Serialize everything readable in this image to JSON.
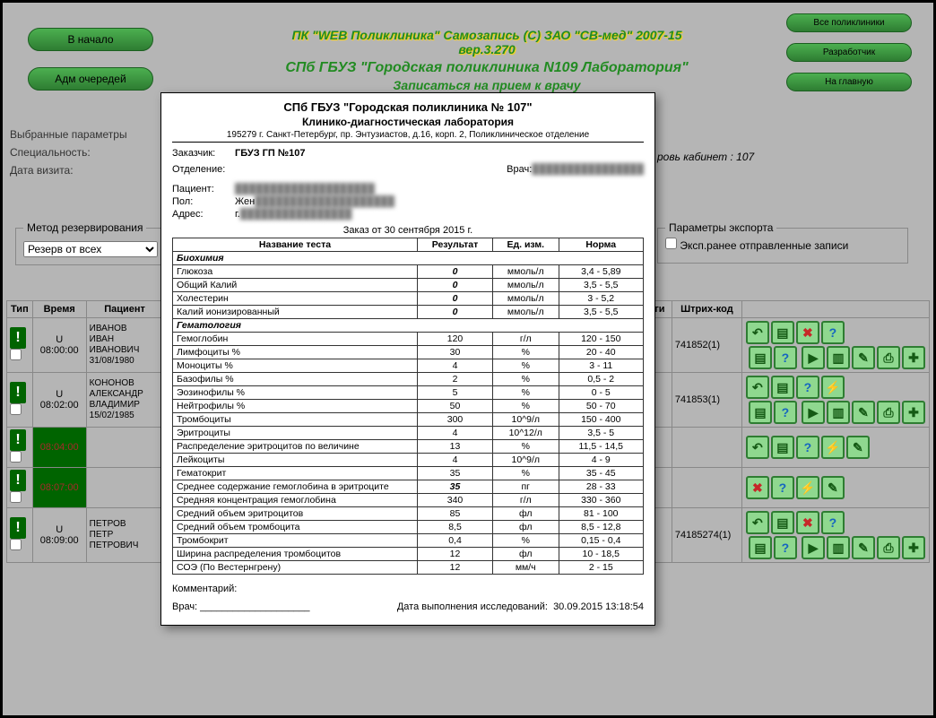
{
  "left_buttons": {
    "home": "В начало",
    "adm_queue": "Адм очередей"
  },
  "right_buttons": {
    "all_clinics": "Все поликлиники",
    "developer": "Разработчик",
    "to_main": "На главную"
  },
  "header": {
    "line1": "ПК \"WEB Поликлиника\" Самозапись (C) ЗАО \"СВ-мед\" 2007-15 вер.3.270",
    "line2": "СПб ГБУЗ \"Городская поликлиника N109 Лаборатория\"",
    "line3": "Записаться на прием к врачу"
  },
  "params": {
    "title": "Выбранные параметры",
    "speciality_lbl": "Специальность:",
    "visit_date_lbl": "Дата визита:"
  },
  "cabinet": "ровь кабинет : 107",
  "method_box": {
    "legend": "Метод резервирования",
    "selected": "Резерв от всех"
  },
  "export_box": {
    "legend": "Параметры экспорта",
    "checkbox_label": "Эксп.ранее отправленные записи"
  },
  "sched_headers": {
    "type": "Тип",
    "time": "Время",
    "patient": "Пациент",
    "services": "луги",
    "barcode": "Штрих-код"
  },
  "rows": [
    {
      "time_type": "U",
      "time": "08:00:00",
      "patient": "ИВАНОВ\nИВАН\nИВАНОВИЧ\n31/08/1980",
      "barcode": "741852(1)",
      "icons": [
        "back",
        "doc",
        "x",
        "q",
        "",
        "",
        "doc2",
        "q2",
        "",
        "play",
        "bars",
        "edit",
        "print",
        "plus"
      ],
      "dark": false
    },
    {
      "time_type": "U",
      "time": "08:02:00",
      "patient": "КОНОНОВ\nАЛЕКСАНДР\nВЛАДИМИР\n15/02/1985",
      "barcode": "741853(1)",
      "icons": [
        "back",
        "doc",
        "q",
        "bolt",
        "",
        "",
        "doc2",
        "q2",
        "",
        "play",
        "bars",
        "edit",
        "print",
        "plus"
      ],
      "dark": false
    },
    {
      "time_type": "",
      "time": "08:04:00",
      "patient": "",
      "barcode": "",
      "icons": [
        "back",
        "doc",
        "q",
        "bolt",
        "edit"
      ],
      "dark": true
    },
    {
      "time_type": "",
      "time": "08:07:00",
      "patient": "",
      "barcode": "",
      "icons": [
        "x",
        "q",
        "bolt",
        "edit"
      ],
      "dark": true
    },
    {
      "time_type": "U",
      "time": "08:09:00",
      "patient": "ПЕТРОВ\nПЕТР\nПЕТРОВИЧ",
      "barcode": "74185274(1)",
      "icons": [
        "back",
        "doc",
        "x",
        "q",
        "",
        "",
        "doc2",
        "q2",
        "",
        "play",
        "bars",
        "edit",
        "print",
        "plus"
      ],
      "dark": false
    }
  ],
  "lab": {
    "org": "СПб ГБУЗ \"Городская поликлиника № 107\"",
    "dept": "Клинико-диагностическая лаборатория",
    "addr": "195279 г. Санкт-Петербург, пр. Энтузиастов, д.16, корп. 2, Поликлиническое отделение",
    "customer_lbl": "Заказчик:",
    "customer": "ГБУЗ ГП №107",
    "division_lbl": "Отделение:",
    "doctor_lbl": "Врач:",
    "patient_lbl": "Пациент:",
    "sex_lbl": "Пол:",
    "sex": "Жен",
    "address_lbl": "Адрес:",
    "address_val": "г.",
    "order_date": "Заказ от 30 сентября 2015 г.",
    "th": {
      "name": "Название теста",
      "result": "Результат",
      "unit": "Ед. изм.",
      "norm": "Норма"
    },
    "sections": [
      {
        "title": "Биохимия",
        "rows": [
          {
            "name": "Глюкоза",
            "res": "0",
            "unit": "ммоль/л",
            "norm": "3,4 - 5,89",
            "bold": true
          },
          {
            "name": "Общий Калий",
            "res": "0",
            "unit": "ммоль/л",
            "norm": "3,5 - 5,5",
            "bold": true
          },
          {
            "name": "Холестерин",
            "res": "0",
            "unit": "ммоль/л",
            "norm": "3 - 5,2",
            "bold": true
          },
          {
            "name": "Калий ионизированный",
            "res": "0",
            "unit": "ммоль/л",
            "norm": "3,5 - 5,5",
            "bold": true
          }
        ]
      },
      {
        "title": "Гематология",
        "rows": [
          {
            "name": "Гемоглобин",
            "res": "120",
            "unit": "г/л",
            "norm": "120 - 150"
          },
          {
            "name": "Лимфоциты %",
            "res": "30",
            "unit": "%",
            "norm": "20 - 40"
          },
          {
            "name": "Моноциты %",
            "res": "4",
            "unit": "%",
            "norm": "3 - 11"
          },
          {
            "name": "Базофилы %",
            "res": "2",
            "unit": "%",
            "norm": "0,5 - 2"
          },
          {
            "name": "Эозинофилы %",
            "res": "5",
            "unit": "%",
            "norm": "0 - 5"
          },
          {
            "name": "Нейтрофилы %",
            "res": "50",
            "unit": "%",
            "norm": "50 - 70"
          },
          {
            "name": "Тромбоциты",
            "res": "300",
            "unit": "10^9/л",
            "norm": "150 - 400"
          },
          {
            "name": "Эритроциты",
            "res": "4",
            "unit": "10^12/л",
            "norm": "3,5 - 5"
          },
          {
            "name": "Распределение эритроцитов по величине",
            "res": "13",
            "unit": "%",
            "norm": "11,5 - 14,5"
          },
          {
            "name": "Лейкоциты",
            "res": "4",
            "unit": "10^9/л",
            "norm": "4 - 9"
          },
          {
            "name": "Гематокрит",
            "res": "35",
            "unit": "%",
            "norm": "35 - 45"
          },
          {
            "name": "Среднее содержание гемоглобина в эритроците",
            "res": "35",
            "unit": "пг",
            "norm": "28 - 33",
            "bold": true
          },
          {
            "name": "Средняя концентрация гемоглобина",
            "res": "340",
            "unit": "г/л",
            "norm": "330 - 360"
          },
          {
            "name": "Средний объем эритроцитов",
            "res": "85",
            "unit": "фл",
            "norm": "81 - 100"
          },
          {
            "name": "Средний объем тромбоцита",
            "res": "8,5",
            "unit": "фл",
            "norm": "8,5 - 12,8"
          },
          {
            "name": "Тромбокрит",
            "res": "0,4",
            "unit": "%",
            "norm": "0,15 - 0,4"
          },
          {
            "name": "Ширина распределения тромбоцитов",
            "res": "12",
            "unit": "фл",
            "norm": "10 - 18,5"
          },
          {
            "name": "СОЭ (По Вестернгрену)",
            "res": "12",
            "unit": "мм/ч",
            "norm": "2 - 15"
          }
        ]
      }
    ],
    "comment_lbl": "Комментарий:",
    "sign_doctor": "Врач:",
    "exec_date_lbl": "Дата выполнения исследований:",
    "exec_date": "30.09.2015 13:18:54"
  },
  "icon_glyphs": {
    "back": "↶",
    "doc": "▤",
    "x": "✖",
    "q": "?",
    "doc2": "▤",
    "q2": "?",
    "play": "▶",
    "bars": "▥",
    "edit": "✎",
    "print": "⎙",
    "plus": "✚",
    "bolt": "⚡",
    "": ""
  }
}
